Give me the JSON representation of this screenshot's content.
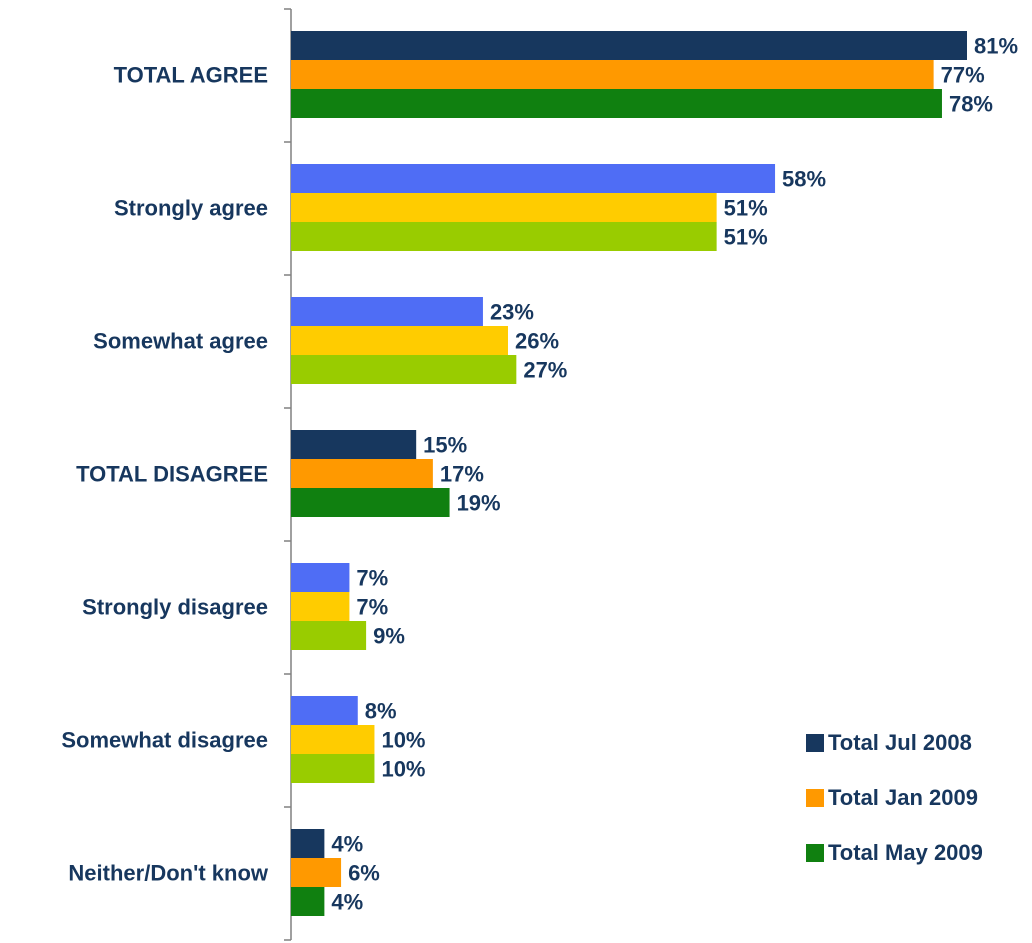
{
  "chart_data": {
    "type": "bar",
    "orientation": "horizontal",
    "categories": [
      "TOTAL AGREE",
      "Strongly agree",
      "Somewhat agree",
      "TOTAL DISAGREE",
      "Strongly disagree",
      "Somewhat disagree",
      "Neither/Don't know"
    ],
    "series": [
      {
        "name": "Total Jul 2008",
        "values": [
          81,
          58,
          23,
          15,
          7,
          8,
          4
        ],
        "color": "#17375E",
        "sub_color": "#4F6DF5"
      },
      {
        "name": "Total Jan 2009",
        "values": [
          77,
          51,
          26,
          17,
          7,
          10,
          6
        ],
        "color": "#FF9900",
        "sub_color": "#FFCC00"
      },
      {
        "name": "Total May 2009",
        "values": [
          78,
          51,
          27,
          19,
          9,
          10,
          4
        ],
        "color": "#108010",
        "sub_color": "#99CC00"
      }
    ],
    "total_categories": [
      "TOTAL AGREE",
      "TOTAL DISAGREE",
      "Neither/Don't know"
    ],
    "value_suffix": "%",
    "xlim": [
      0,
      81
    ],
    "grid": false,
    "legend_position": "bottom-right"
  },
  "colors": {
    "label_text": "#17375E",
    "axis": "#808080"
  }
}
